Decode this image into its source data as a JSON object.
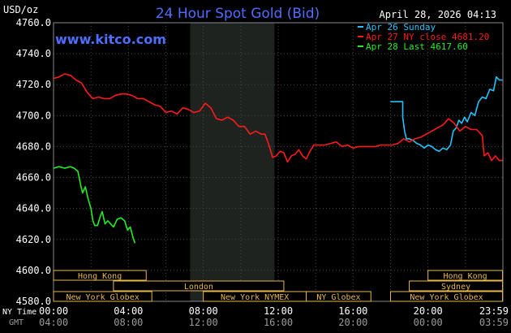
{
  "chart_data": {
    "type": "line",
    "title": "24 Hour Spot Gold (Bid)",
    "unit_label": "USD/oz",
    "watermark": "www.kitco.com",
    "timestamp": "April 28, 2026 04:13",
    "ylim": [
      4580,
      4760
    ],
    "y_ticks": [
      "4760.0",
      "4740.0",
      "4720.0",
      "4700.0",
      "4680.0",
      "4660.0",
      "4640.0",
      "4620.0",
      "4600.0",
      "4580.0"
    ],
    "y_tick_values": [
      4760,
      4740,
      4720,
      4700,
      4680,
      4660,
      4640,
      4620,
      4600,
      4580
    ],
    "x_range_hours": [
      0,
      24
    ],
    "ny_time_label": "NY Time",
    "gmt_label": "GMT",
    "x_ticks_ny": [
      "00:00",
      "04:00",
      "08:00",
      "12:00",
      "16:00",
      "20:00",
      "23:59"
    ],
    "x_ticks_gmt": [
      "04:00",
      "08:00",
      "12:00",
      "16:00",
      "20:00",
      "00:00",
      "03:59"
    ],
    "x_tick_hours": [
      0,
      4,
      8,
      12,
      16,
      20,
      23.98
    ],
    "shaded_region_hours": [
      7.3,
      11.8
    ],
    "grid": true,
    "legend_position": "top-right",
    "series": [
      {
        "name": "Apr 26 Sunday",
        "legend": "Apr 26 Sunday",
        "color": "#22c4ff",
        "points": [
          [
            18.0,
            4709
          ],
          [
            18.65,
            4709
          ],
          [
            18.65,
            4699
          ],
          [
            18.75,
            4690
          ],
          [
            18.85,
            4685
          ],
          [
            19.0,
            4685
          ],
          [
            19.2,
            4684
          ],
          [
            19.4,
            4682
          ],
          [
            19.6,
            4681
          ],
          [
            19.8,
            4679
          ],
          [
            20.0,
            4681
          ],
          [
            20.2,
            4680
          ],
          [
            20.4,
            4678
          ],
          [
            20.6,
            4677
          ],
          [
            20.8,
            4679
          ],
          [
            21.0,
            4678
          ],
          [
            21.2,
            4681
          ],
          [
            21.35,
            4690
          ],
          [
            21.5,
            4692
          ],
          [
            21.65,
            4697
          ],
          [
            21.8,
            4695
          ],
          [
            21.95,
            4699
          ],
          [
            22.1,
            4696
          ],
          [
            22.3,
            4702
          ],
          [
            22.5,
            4700
          ],
          [
            22.7,
            4709
          ],
          [
            22.9,
            4712
          ],
          [
            23.1,
            4711
          ],
          [
            23.3,
            4717
          ],
          [
            23.5,
            4716
          ],
          [
            23.65,
            4725
          ],
          [
            23.8,
            4723
          ],
          [
            23.98,
            4723
          ]
        ]
      },
      {
        "name": "Apr 27 NY close",
        "legend": "Apr 27 NY close 4681.20",
        "color": "#ff1a1a",
        "points": [
          [
            0.0,
            4724
          ],
          [
            0.3,
            4725
          ],
          [
            0.6,
            4727
          ],
          [
            0.9,
            4726
          ],
          [
            1.2,
            4723
          ],
          [
            1.5,
            4721
          ],
          [
            1.8,
            4715
          ],
          [
            2.1,
            4711
          ],
          [
            2.4,
            4712
          ],
          [
            2.7,
            4711
          ],
          [
            3.0,
            4711
          ],
          [
            3.3,
            4713
          ],
          [
            3.6,
            4714
          ],
          [
            3.9,
            4714
          ],
          [
            4.2,
            4713
          ],
          [
            4.5,
            4711
          ],
          [
            4.8,
            4711
          ],
          [
            5.1,
            4709
          ],
          [
            5.4,
            4707
          ],
          [
            5.7,
            4706
          ],
          [
            6.0,
            4702
          ],
          [
            6.3,
            4703
          ],
          [
            6.6,
            4701
          ],
          [
            6.9,
            4705
          ],
          [
            7.2,
            4704
          ],
          [
            7.5,
            4702
          ],
          [
            7.8,
            4703
          ],
          [
            8.1,
            4708
          ],
          [
            8.4,
            4705
          ],
          [
            8.7,
            4698
          ],
          [
            9.0,
            4697
          ],
          [
            9.3,
            4699
          ],
          [
            9.6,
            4697
          ],
          [
            9.9,
            4693
          ],
          [
            10.2,
            4693
          ],
          [
            10.5,
            4688
          ],
          [
            10.8,
            4690
          ],
          [
            11.1,
            4688
          ],
          [
            11.3,
            4688
          ],
          [
            11.5,
            4681
          ],
          [
            11.7,
            4673
          ],
          [
            11.9,
            4674
          ],
          [
            12.1,
            4677
          ],
          [
            12.3,
            4676
          ],
          [
            12.5,
            4670
          ],
          [
            12.7,
            4674
          ],
          [
            12.9,
            4675
          ],
          [
            13.1,
            4678
          ],
          [
            13.3,
            4674
          ],
          [
            13.5,
            4672
          ],
          [
            13.7,
            4677
          ],
          [
            13.9,
            4681
          ],
          [
            14.2,
            4681
          ],
          [
            14.5,
            4681
          ],
          [
            14.8,
            4682
          ],
          [
            15.1,
            4683
          ],
          [
            15.4,
            4680
          ],
          [
            15.7,
            4681
          ],
          [
            16.0,
            4679
          ],
          [
            16.3,
            4680
          ],
          [
            16.6,
            4680
          ],
          [
            16.9,
            4680
          ],
          [
            17.2,
            4680
          ],
          [
            17.5,
            4681
          ],
          [
            17.8,
            4681
          ],
          [
            18.1,
            4681
          ],
          [
            18.4,
            4682
          ],
          [
            18.7,
            4685
          ],
          [
            19.0,
            4683
          ],
          [
            19.3,
            4685
          ],
          [
            19.6,
            4686
          ],
          [
            19.9,
            4688
          ],
          [
            20.2,
            4690
          ],
          [
            20.5,
            4692
          ],
          [
            20.8,
            4694
          ],
          [
            21.1,
            4698
          ],
          [
            21.4,
            4695
          ],
          [
            21.7,
            4690
          ],
          [
            22.0,
            4693
          ],
          [
            22.3,
            4691
          ],
          [
            22.6,
            4691
          ],
          [
            22.9,
            4687
          ],
          [
            23.0,
            4674
          ],
          [
            23.2,
            4676
          ],
          [
            23.4,
            4671
          ],
          [
            23.6,
            4674
          ],
          [
            23.8,
            4671
          ],
          [
            23.98,
            4671
          ]
        ]
      },
      {
        "name": "Apr 28 Last",
        "legend": "Apr 28 Last 4617.60",
        "color": "#22ee22",
        "points": [
          [
            0.0,
            4666
          ],
          [
            0.3,
            4667
          ],
          [
            0.6,
            4666
          ],
          [
            0.9,
            4667
          ],
          [
            1.1,
            4666
          ],
          [
            1.3,
            4664
          ],
          [
            1.45,
            4655
          ],
          [
            1.55,
            4650
          ],
          [
            1.7,
            4654
          ],
          [
            1.85,
            4646
          ],
          [
            2.0,
            4640
          ],
          [
            2.1,
            4632
          ],
          [
            2.2,
            4629
          ],
          [
            2.35,
            4629
          ],
          [
            2.5,
            4635
          ],
          [
            2.6,
            4638
          ],
          [
            2.75,
            4630
          ],
          [
            2.9,
            4632
          ],
          [
            3.05,
            4630
          ],
          [
            3.2,
            4628
          ],
          [
            3.4,
            4633
          ],
          [
            3.6,
            4634
          ],
          [
            3.8,
            4632
          ],
          [
            3.95,
            4626
          ],
          [
            4.1,
            4628
          ],
          [
            4.25,
            4621
          ],
          [
            4.35,
            4617.6
          ]
        ]
      }
    ],
    "sessions": [
      {
        "name": "Hong Kong",
        "start": 0,
        "end": 4.95,
        "row": 0
      },
      {
        "name": "London",
        "start": 3.2,
        "end": 12.3,
        "row": 1
      },
      {
        "name": "New York Globex",
        "start": 0,
        "end": 5.25,
        "row": 2
      },
      {
        "name": "New York NYMEX",
        "start": 8.0,
        "end": 13.5,
        "row": 2
      },
      {
        "name": "NY Globex",
        "start": 13.5,
        "end": 16.95,
        "row": 2
      },
      {
        "name": "Hong Kong",
        "start": 20.0,
        "end": 23.98,
        "row": 0
      },
      {
        "name": "Sydney",
        "start": 19.0,
        "end": 23.98,
        "row": 1
      },
      {
        "name": "New York Globex",
        "start": 18.0,
        "end": 23.98,
        "row": 2
      }
    ]
  }
}
